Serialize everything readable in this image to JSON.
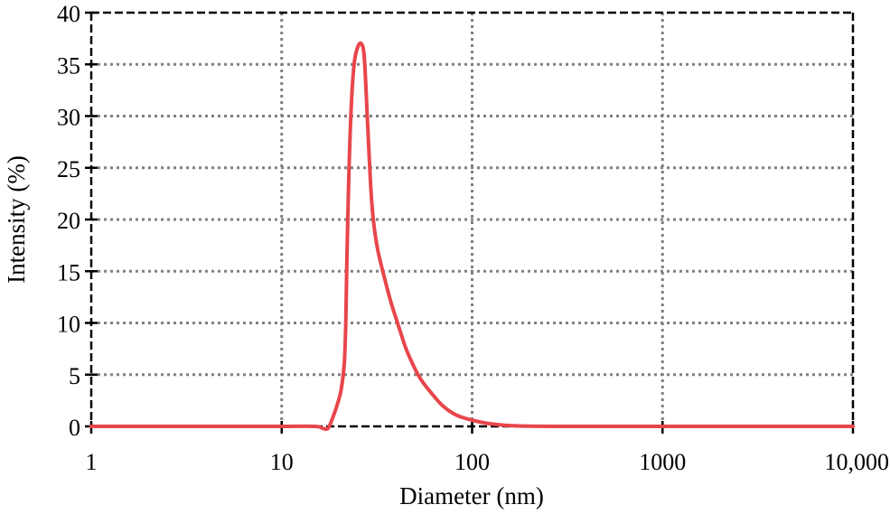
{
  "chart_data": {
    "type": "line",
    "title": "",
    "xlabel": "Diameter (nm)",
    "ylabel": "Intensity (%)",
    "xscale": "log",
    "xlim": [
      1,
      10000
    ],
    "ylim": [
      0,
      40
    ],
    "grid": true,
    "legend": null,
    "x_ticks": [
      1,
      10,
      100,
      1000,
      10000
    ],
    "x_tick_labels": [
      "1",
      "10",
      "100",
      "1000",
      "10,000"
    ],
    "y_ticks": [
      0,
      5,
      10,
      15,
      20,
      25,
      30,
      35,
      40
    ],
    "y_tick_labels": [
      "0",
      "5",
      "10",
      "15",
      "20",
      "25",
      "30",
      "35",
      "40"
    ],
    "series": [
      {
        "name": "Intensity",
        "color": "#e8464b",
        "x": [
          1,
          5,
          10,
          15,
          16.5,
          17.5,
          18.5,
          19.5,
          20.5,
          21.3,
          21.7,
          22.0,
          22.5,
          23.2,
          24.0,
          25.0,
          26.2,
          27.2,
          28.3,
          29.5,
          30.5,
          32.0,
          34.5,
          37.5,
          40.6,
          45.0,
          50.0,
          54.0,
          60.0,
          70.0,
          82.5,
          100,
          120,
          150,
          200,
          300,
          1000,
          10000
        ],
        "y": [
          0,
          0,
          0,
          0,
          -0.2,
          -0.2,
          0.8,
          2.0,
          3.5,
          6.0,
          10.0,
          16.0,
          24.0,
          31.0,
          35.0,
          36.6,
          37.0,
          35.5,
          29.0,
          22.5,
          19.5,
          17.0,
          14.5,
          12.0,
          10.0,
          7.5,
          5.6,
          4.5,
          3.4,
          2.0,
          1.1,
          0.6,
          0.3,
          0.1,
          0.02,
          0,
          0,
          0
        ]
      }
    ]
  }
}
